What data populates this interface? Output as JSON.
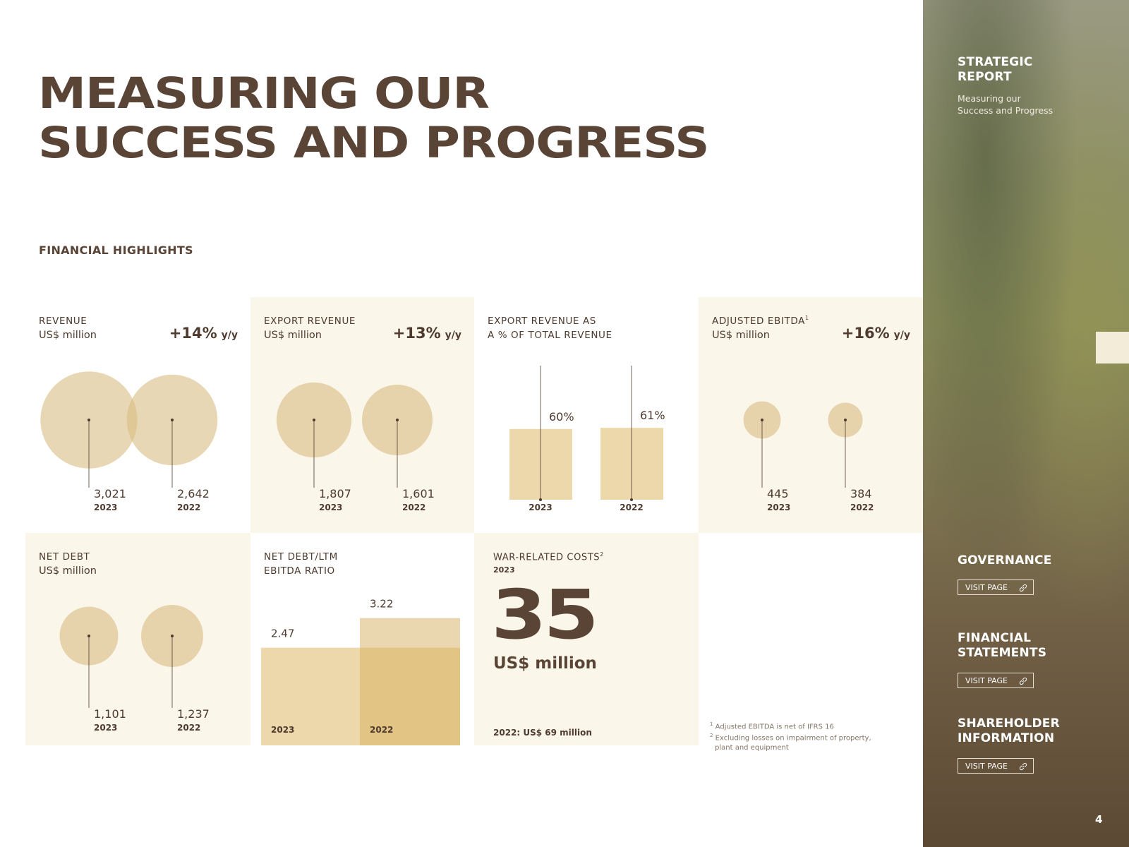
{
  "header": {
    "title": [
      "MEASURING OUR",
      "SUCCESS AND PROGRESS"
    ],
    "section": "FINANCIAL HIGHLIGHTS"
  },
  "chart_data": [
    {
      "type": "bubble",
      "title": [
        "REVENUE"
      ],
      "subtitle": "US$ million",
      "change": "+14%",
      "change_unit": "y/y",
      "categories": [
        "2023",
        "2022"
      ],
      "values": [
        3021,
        2642
      ],
      "value_labels": [
        "3,021",
        "2,642"
      ],
      "color": "#d9bc82"
    },
    {
      "type": "bubble",
      "title": [
        "EXPORT REVENUE"
      ],
      "subtitle": "US$ million",
      "change": "+13%",
      "change_unit": "y/y",
      "categories": [
        "2023",
        "2022"
      ],
      "values": [
        1807,
        1601
      ],
      "value_labels": [
        "1,807",
        "1,601"
      ],
      "color": "#d9bc82"
    },
    {
      "type": "column",
      "title": [
        "EXPORT REVENUE AS",
        "A % OF TOTAL REVENUE"
      ],
      "categories": [
        "2023",
        "2022"
      ],
      "values": [
        60,
        61
      ],
      "value_labels": [
        "60%",
        "61%"
      ],
      "color": "#ecd8ab"
    },
    {
      "type": "bubble",
      "title": [
        "ADJUSTED EBITDA"
      ],
      "title_note": "1",
      "subtitle": "US$ million",
      "change": "+16%",
      "change_unit": "y/y",
      "categories": [
        "2023",
        "2022"
      ],
      "values": [
        445,
        384
      ],
      "color": "#d9bc82"
    },
    {
      "type": "bubble",
      "title": [
        "NET DEBT"
      ],
      "subtitle": "US$ million",
      "categories": [
        "2023",
        "2022"
      ],
      "values": [
        1101,
        1237
      ],
      "value_labels": [
        "1,101",
        "1,237"
      ],
      "color": "#d9bc82"
    },
    {
      "type": "overlap",
      "title": [
        "NET DEBT/LTM",
        "EBITDA RATIO"
      ],
      "categories": [
        "2023",
        "2022"
      ],
      "values": [
        2.47,
        3.22
      ],
      "colors": [
        "#ecd8ab",
        "#d8b060"
      ]
    }
  ],
  "war_costs": {
    "title": "WAR-RELATED COSTS",
    "title_note": "2",
    "year": "2023",
    "value": 35,
    "unit": "US$ million",
    "prior": "2022: US$ 69 million"
  },
  "footnotes": [
    {
      "marker": "1",
      "text": "Adjusted EBITDA is net of IFRS 16"
    },
    {
      "marker": "2",
      "text": "Excluding losses on impairment of property, plant and equipment"
    }
  ],
  "sidebar": {
    "section": "STRATEGIC REPORT",
    "page": "Measuring our Success and Progress",
    "links": [
      {
        "title": "GOVERNANCE",
        "button": "VISIT PAGE"
      },
      {
        "title": "FINANCIAL STATEMENTS",
        "button": "VISIT PAGE"
      },
      {
        "title": "SHAREHOLDER INFORMATION",
        "button": "VISIT PAGE"
      }
    ],
    "page_number": "4"
  }
}
